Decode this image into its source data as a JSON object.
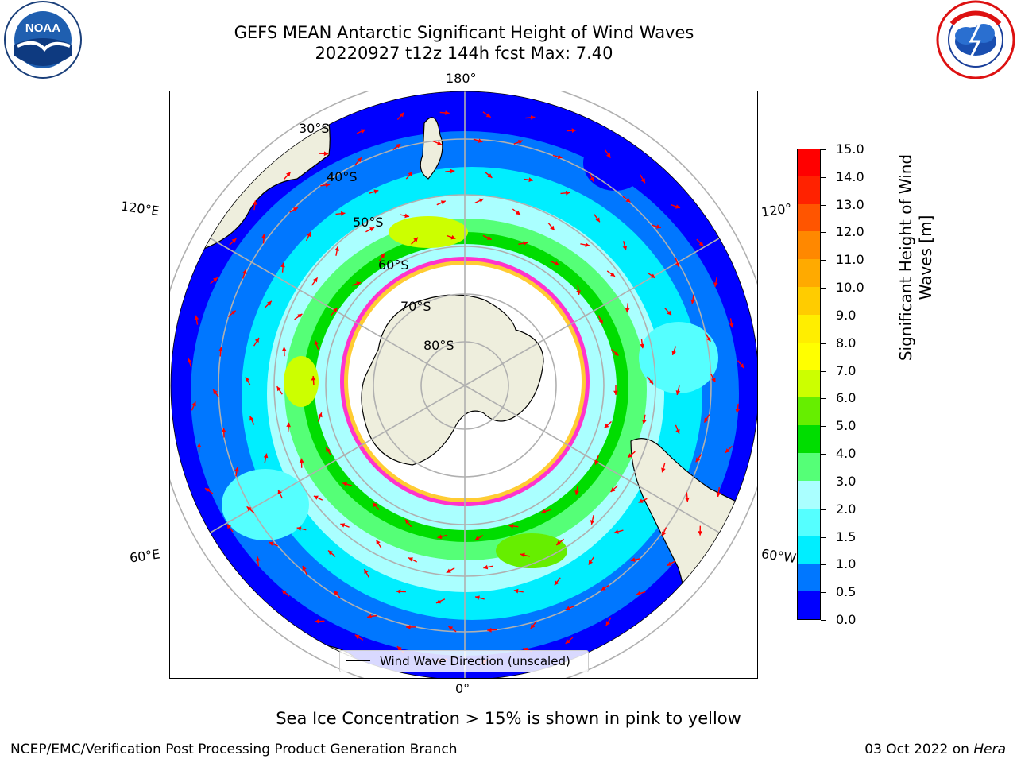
{
  "title_line1": "GEFS MEAN Antarctic Significant Height of Wind Waves",
  "title_line2": "20220927 t12z 144h fcst   Max: 7.40",
  "logos": {
    "left": "noaa-logo",
    "left_text": "NOAA",
    "right": "national-weather-service-logo"
  },
  "map": {
    "projection": "south polar stereographic",
    "lat_labels": [
      "30°S",
      "40°S",
      "50°S",
      "60°S",
      "70°S",
      "80°S"
    ],
    "lon_labels": [
      "180°",
      "120°E",
      "120°",
      "60°E",
      "60°W",
      "0°"
    ],
    "legend": "Wind Wave Direction (unscaled)",
    "colors": {
      "land": "#eeeedd",
      "ice_edge_pink": "#ff33cc",
      "ice_edge_yellow": "#ffcc33",
      "arrow": "#ff0000",
      "grid": "#b0b0b0"
    }
  },
  "colorbar": {
    "label_line1": "Significant Height of Wind",
    "label_line2": "Waves [m]",
    "ticks": [
      "0.0",
      "0.5",
      "1.0",
      "1.5",
      "2.0",
      "3.0",
      "4.0",
      "5.0",
      "6.0",
      "7.0",
      "8.0",
      "9.0",
      "10.0",
      "11.0",
      "12.0",
      "13.0",
      "14.0",
      "15.0"
    ],
    "colors": [
      "#0000ff",
      "#0077ff",
      "#00eeff",
      "#55ffff",
      "#aaffff",
      "#55ff77",
      "#00dd00",
      "#66ee00",
      "#ccff00",
      "#ffff00",
      "#ffee00",
      "#ffcc00",
      "#ffaa00",
      "#ff8800",
      "#ff5500",
      "#ff2200",
      "#ff0000"
    ]
  },
  "footnote": "Sea Ice Concentration > 15% is shown in pink to yellow",
  "credit": "NCEP/EMC/Verification Post Processing Product Generation Branch",
  "date_prefix": "03 Oct 2022 on ",
  "date_machine": "Hera"
}
